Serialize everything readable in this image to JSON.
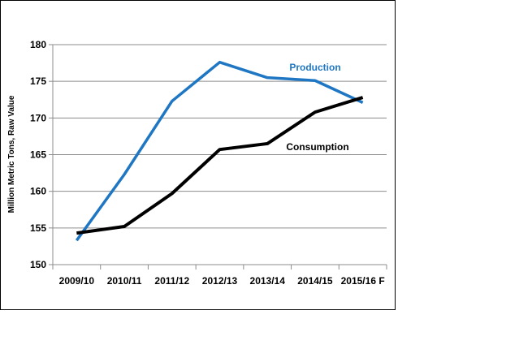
{
  "chart_data": {
    "type": "line",
    "categories": [
      "2009/10",
      "2010/11",
      "2011/12",
      "2012/13",
      "2013/14",
      "2014/15",
      "2015/16 F"
    ],
    "series": [
      {
        "name": "Production",
        "color": "#1f77c4",
        "values": [
          153.3,
          162.3,
          172.3,
          177.6,
          175.5,
          175.1,
          172.1
        ]
      },
      {
        "name": "Consumption",
        "color": "#000000",
        "values": [
          154.3,
          155.2,
          159.7,
          165.7,
          166.5,
          170.8,
          172.8
        ]
      }
    ],
    "title": "",
    "xlabel": "",
    "ylabel": "Million Metric Tons, Raw Value",
    "ylim": [
      150,
      180
    ],
    "yticks": [
      150,
      155,
      160,
      165,
      170,
      175,
      180
    ],
    "grid": true,
    "legend": "inline labels"
  }
}
